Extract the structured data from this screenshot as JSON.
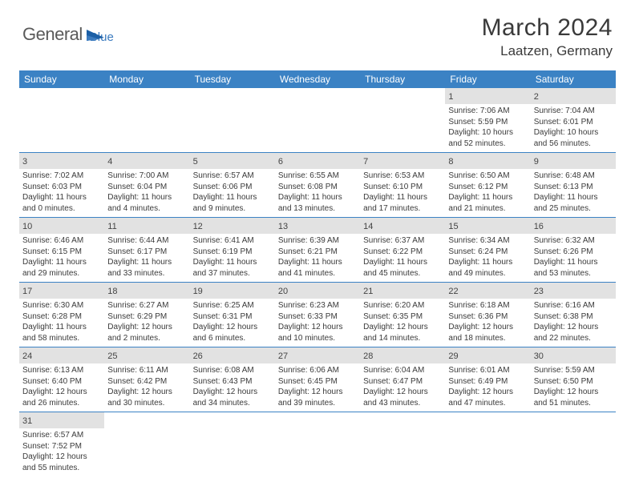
{
  "logo": {
    "text1": "General",
    "text2": "Blue"
  },
  "title": "March 2024",
  "location": "Laatzen, Germany",
  "colors": {
    "header_bg": "#3b82c4",
    "header_text": "#ffffff",
    "daynum_bg": "#e2e2e2",
    "border": "#3b82c4",
    "text": "#3a3a3a",
    "logo_gray": "#5a5a5a",
    "logo_blue": "#3b7bbf"
  },
  "fonts": {
    "title_size": 30,
    "location_size": 17,
    "header_size": 12,
    "cell_size": 10
  },
  "weekdays": [
    "Sunday",
    "Monday",
    "Tuesday",
    "Wednesday",
    "Thursday",
    "Friday",
    "Saturday"
  ],
  "weeks": [
    [
      null,
      null,
      null,
      null,
      null,
      {
        "day": "1",
        "sunrise": "7:06 AM",
        "sunset": "5:59 PM",
        "daylight": "10 hours and 52 minutes."
      },
      {
        "day": "2",
        "sunrise": "7:04 AM",
        "sunset": "6:01 PM",
        "daylight": "10 hours and 56 minutes."
      }
    ],
    [
      {
        "day": "3",
        "sunrise": "7:02 AM",
        "sunset": "6:03 PM",
        "daylight": "11 hours and 0 minutes."
      },
      {
        "day": "4",
        "sunrise": "7:00 AM",
        "sunset": "6:04 PM",
        "daylight": "11 hours and 4 minutes."
      },
      {
        "day": "5",
        "sunrise": "6:57 AM",
        "sunset": "6:06 PM",
        "daylight": "11 hours and 9 minutes."
      },
      {
        "day": "6",
        "sunrise": "6:55 AM",
        "sunset": "6:08 PM",
        "daylight": "11 hours and 13 minutes."
      },
      {
        "day": "7",
        "sunrise": "6:53 AM",
        "sunset": "6:10 PM",
        "daylight": "11 hours and 17 minutes."
      },
      {
        "day": "8",
        "sunrise": "6:50 AM",
        "sunset": "6:12 PM",
        "daylight": "11 hours and 21 minutes."
      },
      {
        "day": "9",
        "sunrise": "6:48 AM",
        "sunset": "6:13 PM",
        "daylight": "11 hours and 25 minutes."
      }
    ],
    [
      {
        "day": "10",
        "sunrise": "6:46 AM",
        "sunset": "6:15 PM",
        "daylight": "11 hours and 29 minutes."
      },
      {
        "day": "11",
        "sunrise": "6:44 AM",
        "sunset": "6:17 PM",
        "daylight": "11 hours and 33 minutes."
      },
      {
        "day": "12",
        "sunrise": "6:41 AM",
        "sunset": "6:19 PM",
        "daylight": "11 hours and 37 minutes."
      },
      {
        "day": "13",
        "sunrise": "6:39 AM",
        "sunset": "6:21 PM",
        "daylight": "11 hours and 41 minutes."
      },
      {
        "day": "14",
        "sunrise": "6:37 AM",
        "sunset": "6:22 PM",
        "daylight": "11 hours and 45 minutes."
      },
      {
        "day": "15",
        "sunrise": "6:34 AM",
        "sunset": "6:24 PM",
        "daylight": "11 hours and 49 minutes."
      },
      {
        "day": "16",
        "sunrise": "6:32 AM",
        "sunset": "6:26 PM",
        "daylight": "11 hours and 53 minutes."
      }
    ],
    [
      {
        "day": "17",
        "sunrise": "6:30 AM",
        "sunset": "6:28 PM",
        "daylight": "11 hours and 58 minutes."
      },
      {
        "day": "18",
        "sunrise": "6:27 AM",
        "sunset": "6:29 PM",
        "daylight": "12 hours and 2 minutes."
      },
      {
        "day": "19",
        "sunrise": "6:25 AM",
        "sunset": "6:31 PM",
        "daylight": "12 hours and 6 minutes."
      },
      {
        "day": "20",
        "sunrise": "6:23 AM",
        "sunset": "6:33 PM",
        "daylight": "12 hours and 10 minutes."
      },
      {
        "day": "21",
        "sunrise": "6:20 AM",
        "sunset": "6:35 PM",
        "daylight": "12 hours and 14 minutes."
      },
      {
        "day": "22",
        "sunrise": "6:18 AM",
        "sunset": "6:36 PM",
        "daylight": "12 hours and 18 minutes."
      },
      {
        "day": "23",
        "sunrise": "6:16 AM",
        "sunset": "6:38 PM",
        "daylight": "12 hours and 22 minutes."
      }
    ],
    [
      {
        "day": "24",
        "sunrise": "6:13 AM",
        "sunset": "6:40 PM",
        "daylight": "12 hours and 26 minutes."
      },
      {
        "day": "25",
        "sunrise": "6:11 AM",
        "sunset": "6:42 PM",
        "daylight": "12 hours and 30 minutes."
      },
      {
        "day": "26",
        "sunrise": "6:08 AM",
        "sunset": "6:43 PM",
        "daylight": "12 hours and 34 minutes."
      },
      {
        "day": "27",
        "sunrise": "6:06 AM",
        "sunset": "6:45 PM",
        "daylight": "12 hours and 39 minutes."
      },
      {
        "day": "28",
        "sunrise": "6:04 AM",
        "sunset": "6:47 PM",
        "daylight": "12 hours and 43 minutes."
      },
      {
        "day": "29",
        "sunrise": "6:01 AM",
        "sunset": "6:49 PM",
        "daylight": "12 hours and 47 minutes."
      },
      {
        "day": "30",
        "sunrise": "5:59 AM",
        "sunset": "6:50 PM",
        "daylight": "12 hours and 51 minutes."
      }
    ],
    [
      {
        "day": "31",
        "sunrise": "6:57 AM",
        "sunset": "7:52 PM",
        "daylight": "12 hours and 55 minutes."
      },
      null,
      null,
      null,
      null,
      null,
      null
    ]
  ],
  "labels": {
    "sunrise": "Sunrise:",
    "sunset": "Sunset:",
    "daylight": "Daylight:"
  }
}
